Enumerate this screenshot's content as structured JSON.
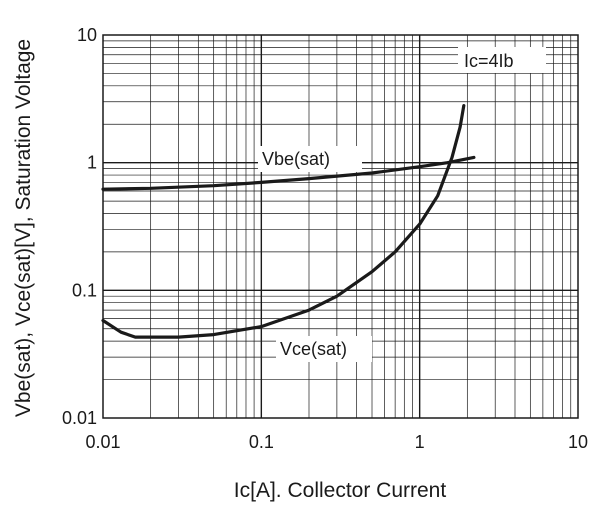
{
  "chart_data": {
    "type": "line",
    "title": "",
    "xlabel": "Ic[A]. Collector Current",
    "ylabel": "Vbe(sat), Vce(sat)[V],  Saturation Voltage",
    "x_scale": "log",
    "y_scale": "log",
    "xlim": [
      0.01,
      10
    ],
    "ylim": [
      0.01,
      10
    ],
    "grid": true,
    "x_ticks": [
      {
        "value": 0.01,
        "label": "0.01"
      },
      {
        "value": 0.1,
        "label": "0.1"
      },
      {
        "value": 1,
        "label": "1"
      },
      {
        "value": 10,
        "label": "10"
      }
    ],
    "y_ticks": [
      {
        "value": 0.01,
        "label": "0.01"
      },
      {
        "value": 0.1,
        "label": "0.1"
      },
      {
        "value": 1,
        "label": "1"
      },
      {
        "value": 10,
        "label": "10"
      }
    ],
    "annotations": {
      "condition": "Ic=4Ib",
      "vbe": "Vbe(sat)",
      "vce": "Vce(sat)"
    },
    "series": [
      {
        "name": "Vbe(sat)",
        "x": [
          0.01,
          0.02,
          0.05,
          0.1,
          0.2,
          0.5,
          1.0,
          1.5,
          2.2
        ],
        "y": [
          0.62,
          0.63,
          0.66,
          0.7,
          0.75,
          0.83,
          0.93,
          1.0,
          1.1
        ]
      },
      {
        "name": "Vce(sat)",
        "x": [
          0.01,
          0.013,
          0.016,
          0.02,
          0.03,
          0.05,
          0.1,
          0.2,
          0.3,
          0.5,
          0.7,
          1.0,
          1.3,
          1.6,
          1.8,
          1.9
        ],
        "y": [
          0.058,
          0.047,
          0.043,
          0.043,
          0.043,
          0.045,
          0.052,
          0.07,
          0.09,
          0.14,
          0.2,
          0.33,
          0.55,
          1.1,
          1.9,
          2.8
        ]
      }
    ],
    "colors": {
      "line": "#1a1a1a",
      "grid": "#1a1a1a",
      "background": "#ffffff"
    }
  }
}
